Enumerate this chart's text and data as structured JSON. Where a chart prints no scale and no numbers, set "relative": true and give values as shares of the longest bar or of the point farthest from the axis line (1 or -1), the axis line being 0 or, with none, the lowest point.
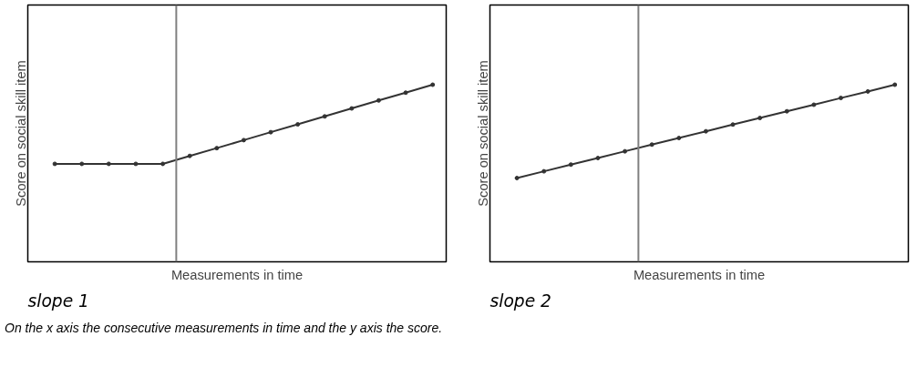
{
  "chart_data": [
    {
      "type": "line",
      "title": "slope 1",
      "xlabel": "Measurements in time",
      "ylabel": "Score on social skill item",
      "relative": true,
      "categories": [
        null,
        null,
        null,
        null,
        null,
        null,
        null,
        null,
        null,
        null,
        null,
        null,
        null,
        null,
        null
      ],
      "series": [
        {
          "color": "#333333",
          "values": [
            0.553,
            0.553,
            0.553,
            0.553,
            0.553,
            0.598,
            0.642,
            0.687,
            0.732,
            0.776,
            0.821,
            0.866,
            0.911,
            0.955,
            1.0
          ]
        }
      ],
      "marker": "circle",
      "grid": false,
      "tick_labels": false,
      "annotations": [
        "On the x axis the consecutive measurements in time and the y axis the score."
      ]
    },
    {
      "type": "line",
      "title": "slope 2",
      "xlabel": "Measurements in time",
      "ylabel": "Score on social skill item",
      "relative": true,
      "categories": [
        null,
        null,
        null,
        null,
        null,
        null,
        null,
        null,
        null,
        null,
        null,
        null,
        null,
        null,
        null
      ],
      "series": [
        {
          "color": "#333333",
          "values": [
            0.473,
            0.511,
            0.549,
            0.586,
            0.624,
            0.662,
            0.699,
            0.737,
            0.775,
            0.812,
            0.85,
            0.887,
            0.925,
            0.962,
            1.0
          ]
        }
      ],
      "marker": "circle",
      "grid": false,
      "tick_labels": false
    }
  ]
}
